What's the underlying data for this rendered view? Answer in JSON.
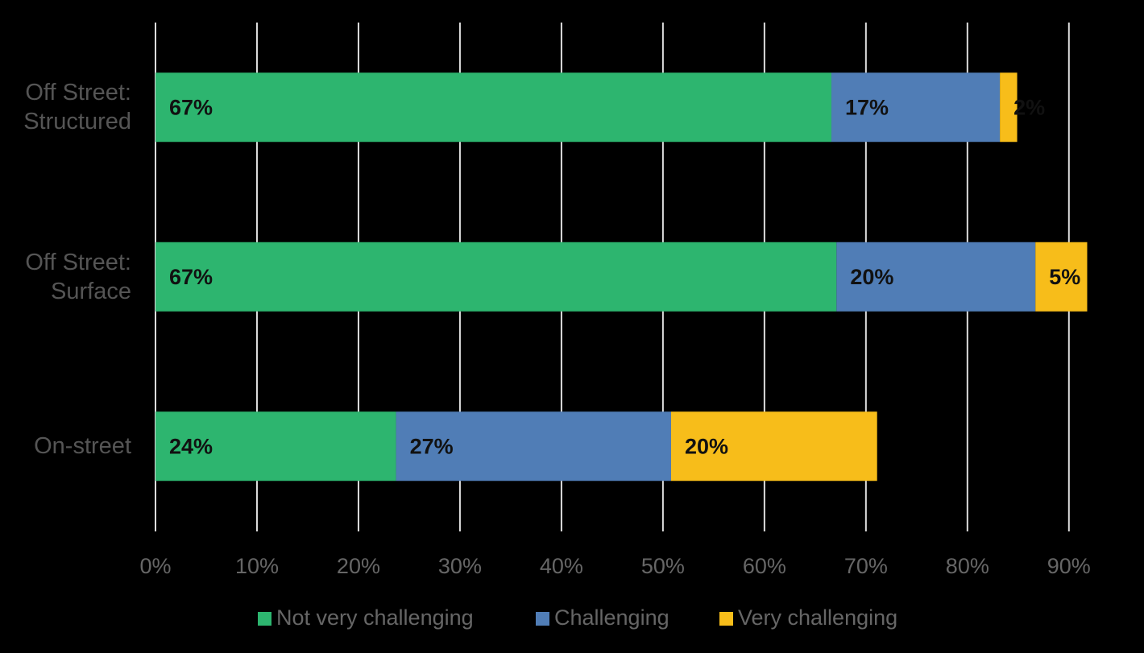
{
  "chart_data": {
    "type": "stacked-bar-horizontal",
    "categories": [
      "Off Street: Structured",
      "Off Street: Surface",
      "On-street"
    ],
    "series": [
      {
        "name": "Not very challenging",
        "color": "#2db56f",
        "values": [
          66.6,
          67.1,
          23.7
        ],
        "value_labels": [
          "67%",
          "67%",
          "24%"
        ]
      },
      {
        "name": "Challenging",
        "color": "#507db6",
        "values": [
          16.6,
          19.6,
          27.1
        ],
        "value_labels": [
          "17%",
          "20%",
          "27%"
        ]
      },
      {
        "name": "Very challenging",
        "color": "#f7bd1a",
        "values": [
          1.7,
          5.1,
          20.3
        ],
        "value_labels": [
          "2%",
          "5%",
          "20%"
        ]
      }
    ],
    "xlim": [
      0,
      92
    ],
    "xticks": [
      {
        "value": 0,
        "label": "0%"
      },
      {
        "value": 10,
        "label": "10%"
      },
      {
        "value": 20,
        "label": "20%"
      },
      {
        "value": 30,
        "label": "30%"
      },
      {
        "value": 40,
        "label": "40%"
      },
      {
        "value": 50,
        "label": "50%"
      },
      {
        "value": 60,
        "label": "60%"
      },
      {
        "value": 70,
        "label": "70%"
      },
      {
        "value": 80,
        "label": "80%"
      },
      {
        "value": 90,
        "label": "90%"
      }
    ],
    "grid": true,
    "legend": "bottom"
  }
}
